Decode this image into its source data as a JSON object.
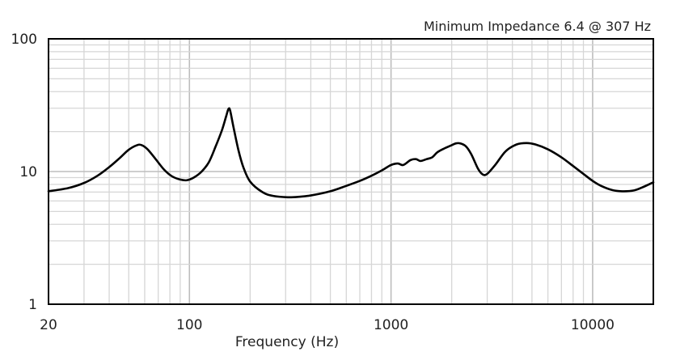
{
  "chart_data": {
    "type": "line",
    "title": "",
    "annotation": "Minimum Impedance 6.4 @ 307 Hz",
    "xlabel": "Frequency (Hz)",
    "ylabel": "",
    "x_scale": "log",
    "y_scale": "log",
    "xlim": [
      20,
      20000
    ],
    "ylim": [
      1,
      100
    ],
    "x_tick_labels": [
      {
        "value": 20,
        "label": "20"
      },
      {
        "value": 100,
        "label": "100"
      },
      {
        "value": 1000,
        "label": "1000"
      },
      {
        "value": 10000,
        "label": "10000"
      }
    ],
    "y_tick_labels": [
      {
        "value": 100,
        "label": "100"
      },
      {
        "value": 10,
        "label": "10"
      },
      {
        "value": 1,
        "label": "1"
      }
    ],
    "grid": true,
    "series": [
      {
        "line_color": "#000000",
        "points": [
          [
            20,
            7.1
          ],
          [
            25,
            7.5
          ],
          [
            30,
            8.2
          ],
          [
            35,
            9.3
          ],
          [
            40,
            10.8
          ],
          [
            45,
            12.6
          ],
          [
            50,
            14.6
          ],
          [
            55,
            15.8
          ],
          [
            58,
            15.8
          ],
          [
            62,
            14.7
          ],
          [
            68,
            12.4
          ],
          [
            75,
            10.3
          ],
          [
            82,
            9.2
          ],
          [
            90,
            8.7
          ],
          [
            97,
            8.6
          ],
          [
            105,
            9.0
          ],
          [
            115,
            10.0
          ],
          [
            125,
            11.8
          ],
          [
            135,
            15.5
          ],
          [
            145,
            20.5
          ],
          [
            152,
            26.0
          ],
          [
            156,
            29.5
          ],
          [
            159,
            29.0
          ],
          [
            165,
            22.0
          ],
          [
            175,
            14.5
          ],
          [
            185,
            10.8
          ],
          [
            200,
            8.4
          ],
          [
            230,
            7.0
          ],
          [
            260,
            6.55
          ],
          [
            307,
            6.4
          ],
          [
            350,
            6.45
          ],
          [
            400,
            6.6
          ],
          [
            500,
            7.1
          ],
          [
            600,
            7.8
          ],
          [
            700,
            8.5
          ],
          [
            800,
            9.3
          ],
          [
            900,
            10.2
          ],
          [
            1000,
            11.2
          ],
          [
            1080,
            11.5
          ],
          [
            1150,
            11.2
          ],
          [
            1250,
            12.2
          ],
          [
            1330,
            12.4
          ],
          [
            1400,
            12.0
          ],
          [
            1500,
            12.4
          ],
          [
            1600,
            12.8
          ],
          [
            1700,
            14.0
          ],
          [
            1850,
            15.0
          ],
          [
            2000,
            15.8
          ],
          [
            2100,
            16.3
          ],
          [
            2200,
            16.3
          ],
          [
            2350,
            15.5
          ],
          [
            2500,
            13.5
          ],
          [
            2700,
            10.5
          ],
          [
            2850,
            9.5
          ],
          [
            3000,
            9.6
          ],
          [
            3300,
            11.3
          ],
          [
            3700,
            14.2
          ],
          [
            4200,
            16.0
          ],
          [
            4700,
            16.4
          ],
          [
            5200,
            16.0
          ],
          [
            6000,
            14.7
          ],
          [
            7000,
            12.8
          ],
          [
            8000,
            11.0
          ],
          [
            9000,
            9.6
          ],
          [
            10000,
            8.5
          ],
          [
            11000,
            7.8
          ],
          [
            12500,
            7.25
          ],
          [
            14000,
            7.1
          ],
          [
            16000,
            7.2
          ],
          [
            18000,
            7.7
          ],
          [
            20000,
            8.3
          ]
        ]
      }
    ]
  }
}
